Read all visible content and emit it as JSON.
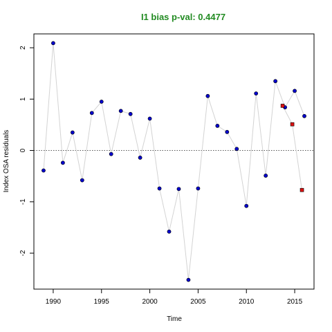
{
  "chart_data": {
    "type": "scatter",
    "title": "I1 bias p-val: 0.4477",
    "title_color": "#228b22",
    "xlabel": "Time",
    "ylabel": "Index OSA residuals",
    "xlim": [
      1988,
      2017
    ],
    "ylim": [
      -2.7,
      2.27
    ],
    "x_ticks": [
      1990,
      1995,
      2000,
      2005,
      2010,
      2015
    ],
    "y_ticks": [
      -2,
      -1,
      0,
      1,
      2
    ],
    "reference_line": {
      "y": 0,
      "style": "dotted",
      "color": "#555555"
    },
    "connector_color": "#d3d3d3",
    "grid": false,
    "series": [
      {
        "marker": "circle",
        "color": "#0000cd",
        "points": [
          [
            1989,
            -0.39
          ],
          [
            1990,
            2.09
          ],
          [
            1991,
            -0.24
          ],
          [
            1992,
            0.35
          ],
          [
            1993,
            -0.58
          ],
          [
            1994,
            0.73
          ],
          [
            1995,
            0.95
          ],
          [
            1996,
            -0.07
          ],
          [
            1997,
            0.77
          ],
          [
            1998,
            0.71
          ],
          [
            1999,
            -0.14
          ],
          [
            2000,
            0.62
          ],
          [
            2001,
            -0.74
          ],
          [
            2002,
            -1.58
          ],
          [
            2003,
            -0.75
          ],
          [
            2004,
            -2.52
          ],
          [
            2005,
            -0.74
          ],
          [
            2006,
            1.06
          ],
          [
            2007,
            0.48
          ],
          [
            2008,
            0.36
          ],
          [
            2009,
            0.03
          ],
          [
            2010,
            -1.08
          ],
          [
            2011,
            1.11
          ],
          [
            2012,
            -0.49
          ],
          [
            2013,
            1.35
          ],
          [
            2014,
            0.84
          ],
          [
            2015,
            1.16
          ],
          [
            2016,
            0.67
          ]
        ]
      },
      {
        "marker": "square",
        "color": "#dd1111",
        "points": [
          [
            2013.75,
            0.87
          ],
          [
            2014.75,
            0.51
          ],
          [
            2015.75,
            -0.77
          ]
        ]
      }
    ]
  }
}
